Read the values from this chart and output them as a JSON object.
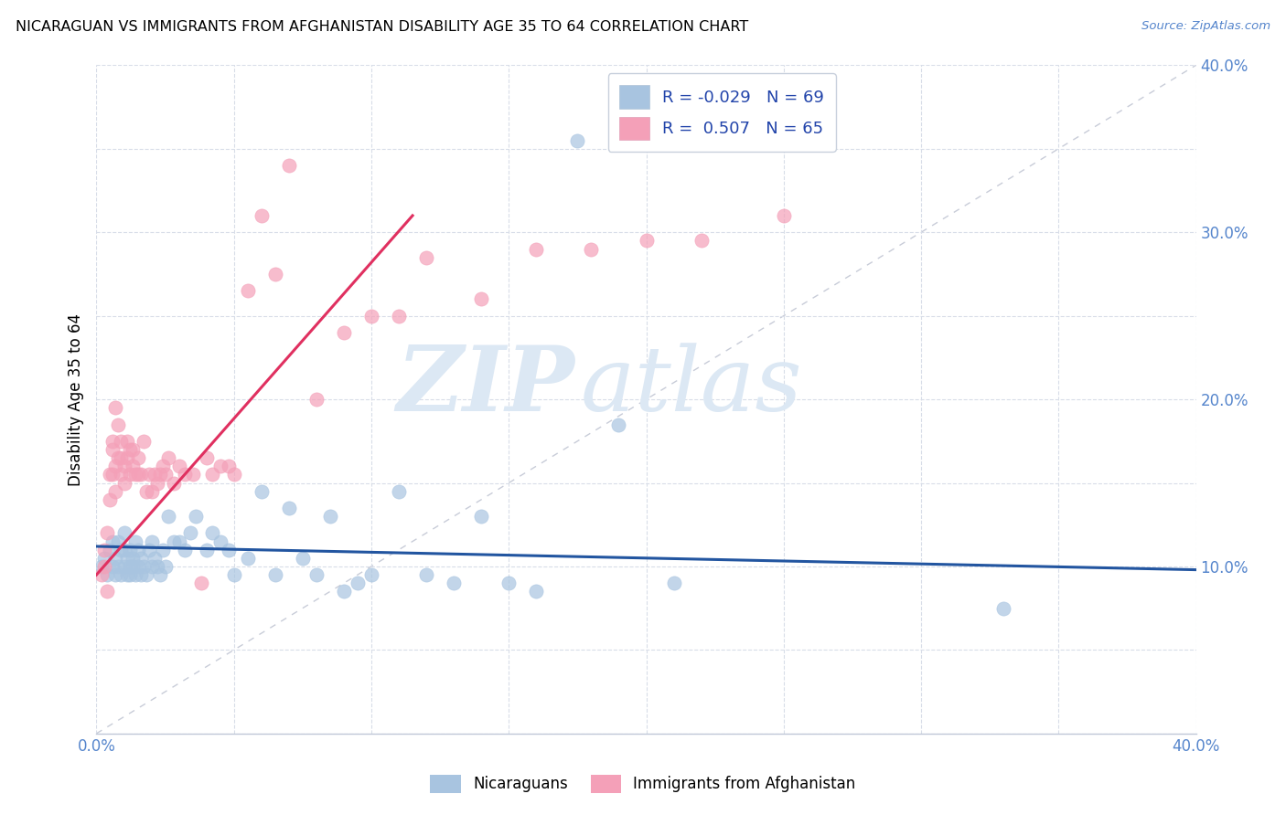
{
  "title": "NICARAGUAN VS IMMIGRANTS FROM AFGHANISTAN DISABILITY AGE 35 TO 64 CORRELATION CHART",
  "source": "Source: ZipAtlas.com",
  "ylabel": "Disability Age 35 to 64",
  "xlim": [
    0.0,
    0.4
  ],
  "ylim": [
    0.0,
    0.4
  ],
  "ytick_labels_right": [
    "",
    "",
    "10.0%",
    "",
    "20.0%",
    "",
    "30.0%",
    "",
    "40.0%"
  ],
  "xtick_labels": [
    "0.0%",
    "",
    "",
    "",
    "",
    "",
    "",
    "",
    "40.0%"
  ],
  "legend_R_blue": "-0.029",
  "legend_N_blue": "69",
  "legend_R_pink": "0.507",
  "legend_N_pink": "65",
  "blue_color": "#a8c4e0",
  "pink_color": "#f4a0b8",
  "blue_line_color": "#2255a0",
  "pink_line_color": "#e03060",
  "diagonal_line_color": "#c8ccd8",
  "watermark_zip": "ZIP",
  "watermark_atlas": "atlas",
  "watermark_color": "#dce8f4",
  "blue_scatter_x": [
    0.002,
    0.003,
    0.004,
    0.005,
    0.006,
    0.006,
    0.007,
    0.007,
    0.008,
    0.008,
    0.009,
    0.009,
    0.01,
    0.01,
    0.01,
    0.011,
    0.011,
    0.012,
    0.012,
    0.012,
    0.013,
    0.013,
    0.014,
    0.014,
    0.015,
    0.015,
    0.016,
    0.016,
    0.017,
    0.018,
    0.019,
    0.02,
    0.02,
    0.021,
    0.022,
    0.023,
    0.024,
    0.025,
    0.026,
    0.028,
    0.03,
    0.032,
    0.034,
    0.036,
    0.04,
    0.042,
    0.045,
    0.048,
    0.05,
    0.055,
    0.06,
    0.065,
    0.07,
    0.075,
    0.08,
    0.085,
    0.09,
    0.095,
    0.1,
    0.11,
    0.12,
    0.13,
    0.14,
    0.15,
    0.16,
    0.175,
    0.19,
    0.21,
    0.33
  ],
  "blue_scatter_y": [
    0.1,
    0.105,
    0.095,
    0.11,
    0.1,
    0.115,
    0.095,
    0.105,
    0.1,
    0.115,
    0.095,
    0.11,
    0.1,
    0.11,
    0.12,
    0.095,
    0.105,
    0.1,
    0.095,
    0.11,
    0.105,
    0.1,
    0.095,
    0.115,
    0.1,
    0.11,
    0.095,
    0.105,
    0.1,
    0.095,
    0.11,
    0.1,
    0.115,
    0.105,
    0.1,
    0.095,
    0.11,
    0.1,
    0.13,
    0.115,
    0.115,
    0.11,
    0.12,
    0.13,
    0.11,
    0.12,
    0.115,
    0.11,
    0.095,
    0.105,
    0.145,
    0.095,
    0.135,
    0.105,
    0.095,
    0.13,
    0.085,
    0.09,
    0.095,
    0.145,
    0.095,
    0.09,
    0.13,
    0.09,
    0.085,
    0.355,
    0.185,
    0.09,
    0.075
  ],
  "pink_scatter_x": [
    0.002,
    0.003,
    0.003,
    0.004,
    0.004,
    0.005,
    0.005,
    0.006,
    0.006,
    0.006,
    0.007,
    0.007,
    0.007,
    0.008,
    0.008,
    0.009,
    0.009,
    0.009,
    0.01,
    0.01,
    0.011,
    0.011,
    0.012,
    0.012,
    0.013,
    0.013,
    0.014,
    0.015,
    0.015,
    0.016,
    0.017,
    0.018,
    0.019,
    0.02,
    0.021,
    0.022,
    0.023,
    0.024,
    0.025,
    0.026,
    0.028,
    0.03,
    0.032,
    0.035,
    0.038,
    0.04,
    0.042,
    0.045,
    0.048,
    0.05,
    0.055,
    0.06,
    0.065,
    0.07,
    0.08,
    0.09,
    0.1,
    0.11,
    0.12,
    0.14,
    0.16,
    0.18,
    0.2,
    0.22,
    0.25
  ],
  "pink_scatter_y": [
    0.095,
    0.1,
    0.11,
    0.085,
    0.12,
    0.155,
    0.14,
    0.17,
    0.155,
    0.175,
    0.16,
    0.195,
    0.145,
    0.165,
    0.185,
    0.155,
    0.165,
    0.175,
    0.15,
    0.16,
    0.165,
    0.175,
    0.155,
    0.17,
    0.16,
    0.17,
    0.155,
    0.155,
    0.165,
    0.155,
    0.175,
    0.145,
    0.155,
    0.145,
    0.155,
    0.15,
    0.155,
    0.16,
    0.155,
    0.165,
    0.15,
    0.16,
    0.155,
    0.155,
    0.09,
    0.165,
    0.155,
    0.16,
    0.16,
    0.155,
    0.265,
    0.31,
    0.275,
    0.34,
    0.2,
    0.24,
    0.25,
    0.25,
    0.285,
    0.26,
    0.29,
    0.29,
    0.295,
    0.295,
    0.31
  ],
  "blue_line_x": [
    0.0,
    0.4
  ],
  "blue_line_y": [
    0.112,
    0.098
  ],
  "pink_line_x": [
    0.0,
    0.115
  ],
  "pink_line_y": [
    0.095,
    0.31
  ]
}
